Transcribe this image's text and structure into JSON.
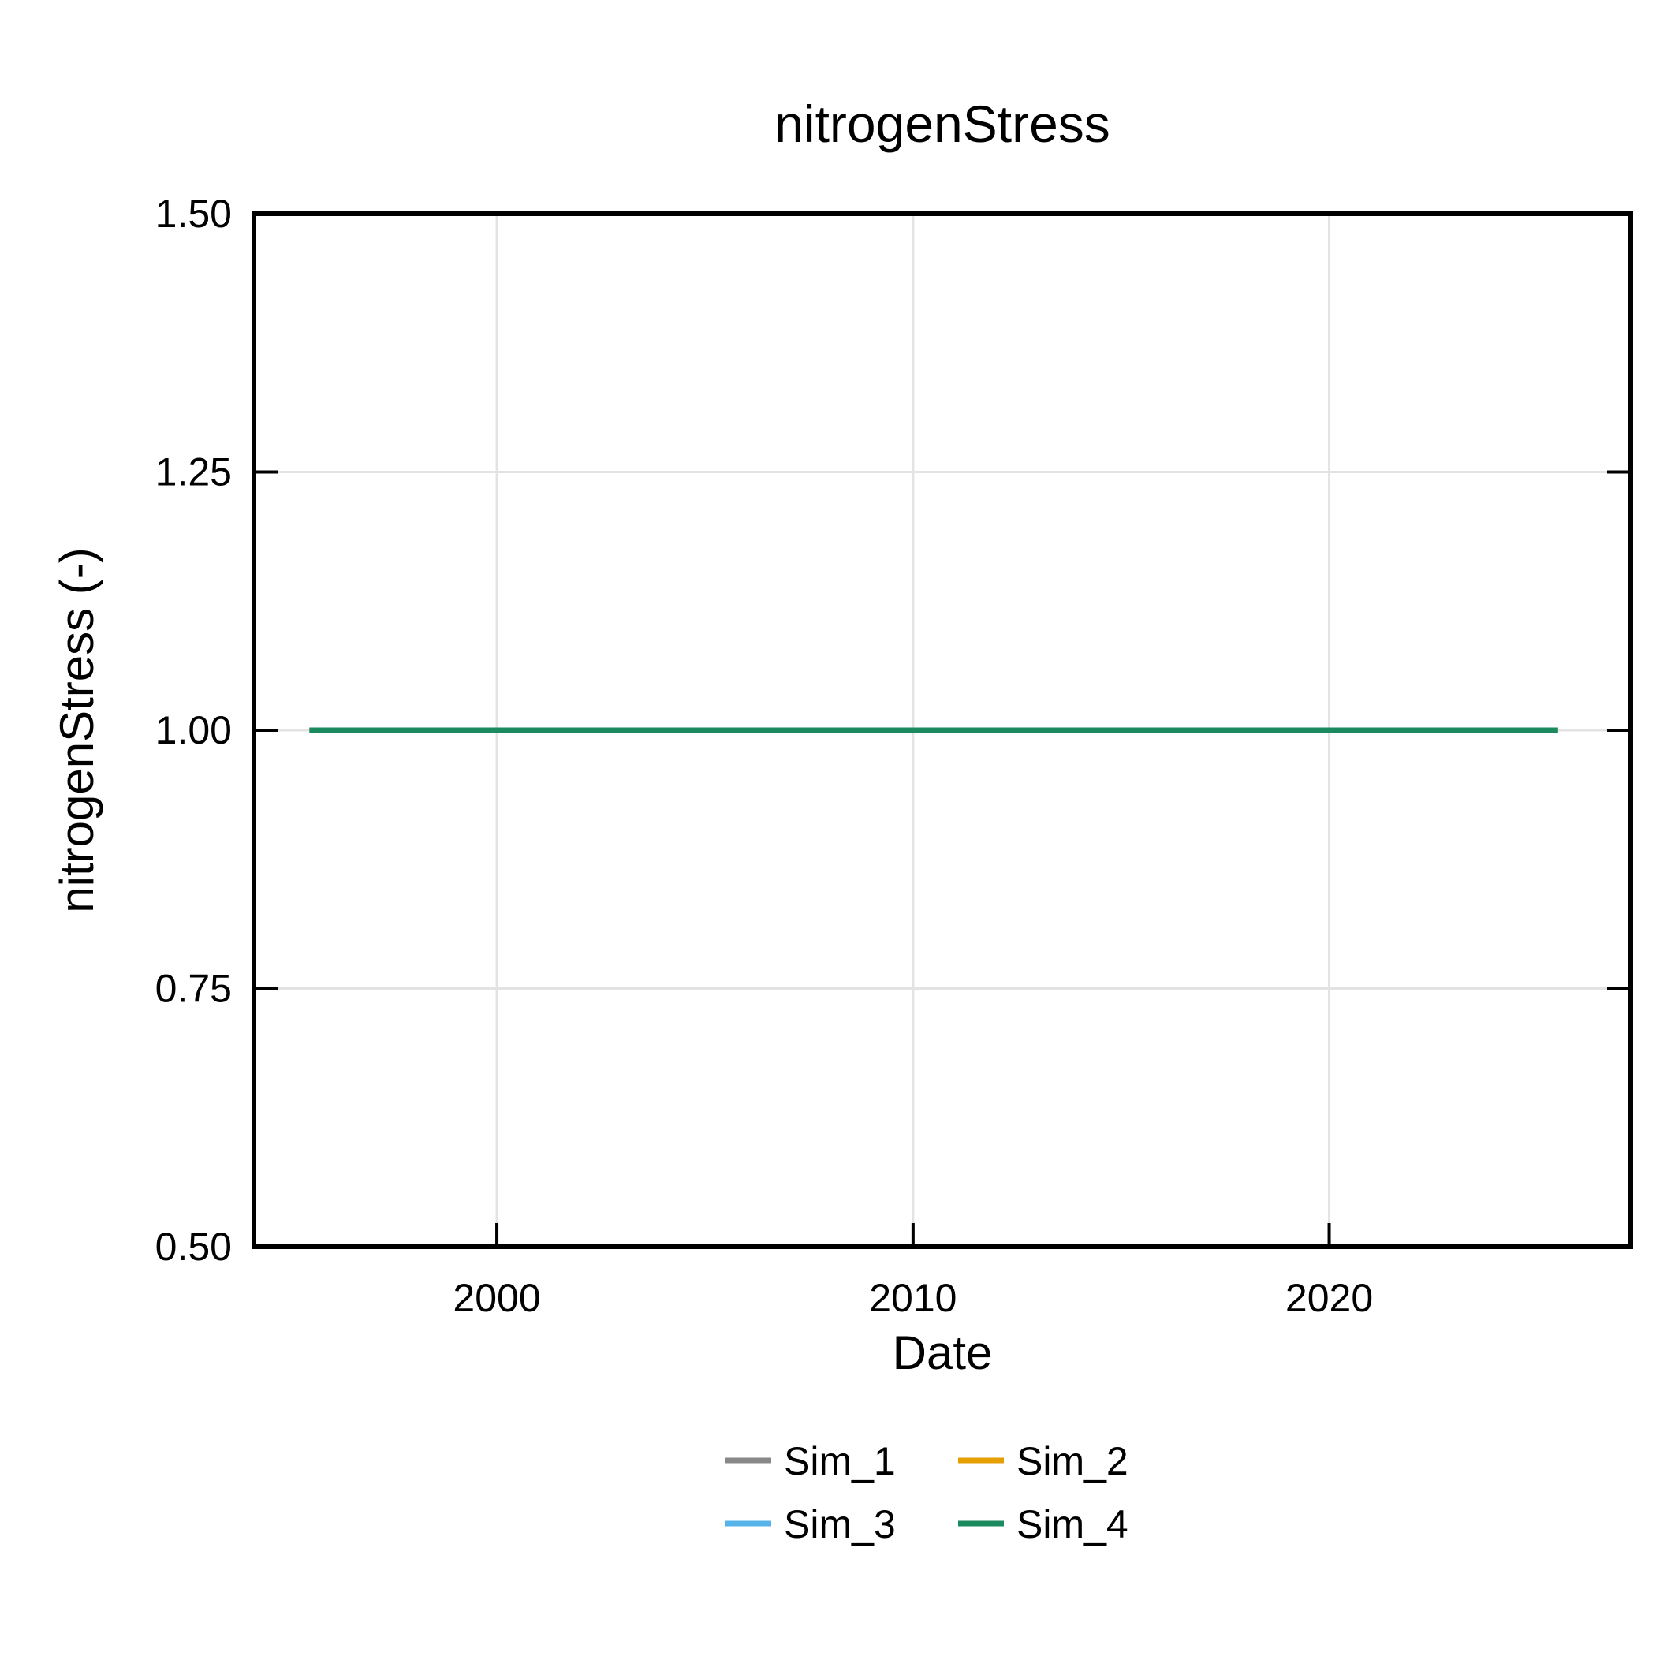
{
  "chart_data": {
    "type": "line",
    "title": "nitrogenStress",
    "xlabel": "Date",
    "ylabel": "nitrogenStress (-)",
    "xlim": [
      "1994-03-01",
      "2027-04-01"
    ],
    "ylim": [
      0.5,
      1.5
    ],
    "x_ticks": [
      {
        "date": "2000-01-01",
        "label": "2000"
      },
      {
        "date": "2010-01-01",
        "label": "2010"
      },
      {
        "date": "2020-01-01",
        "label": "2020"
      }
    ],
    "y_ticks": [
      {
        "value": 0.5,
        "label": "0.50"
      },
      {
        "value": 0.75,
        "label": "0.75"
      },
      {
        "value": 1.0,
        "label": "1.00"
      },
      {
        "value": 1.25,
        "label": "1.25"
      },
      {
        "value": 1.5,
        "label": "1.50"
      }
    ],
    "grid": true,
    "legend_position": "bottom",
    "series": [
      {
        "name": "Sim_1",
        "color": "#888888",
        "x": [
          "1995-07-01",
          "2025-07-01"
        ],
        "y": [
          1.0,
          1.0
        ]
      },
      {
        "name": "Sim_2",
        "color": "#E69F00",
        "x": [
          "1995-07-01",
          "2025-07-01"
        ],
        "y": [
          1.0,
          1.0
        ]
      },
      {
        "name": "Sim_3",
        "color": "#56B4E9",
        "x": [
          "1995-07-01",
          "2025-07-01"
        ],
        "y": [
          1.0,
          1.0
        ]
      },
      {
        "name": "Sim_4",
        "color": "#1B8A5E",
        "x": [
          "1995-07-01",
          "2025-07-01"
        ],
        "y": [
          1.0,
          1.0
        ]
      }
    ]
  }
}
